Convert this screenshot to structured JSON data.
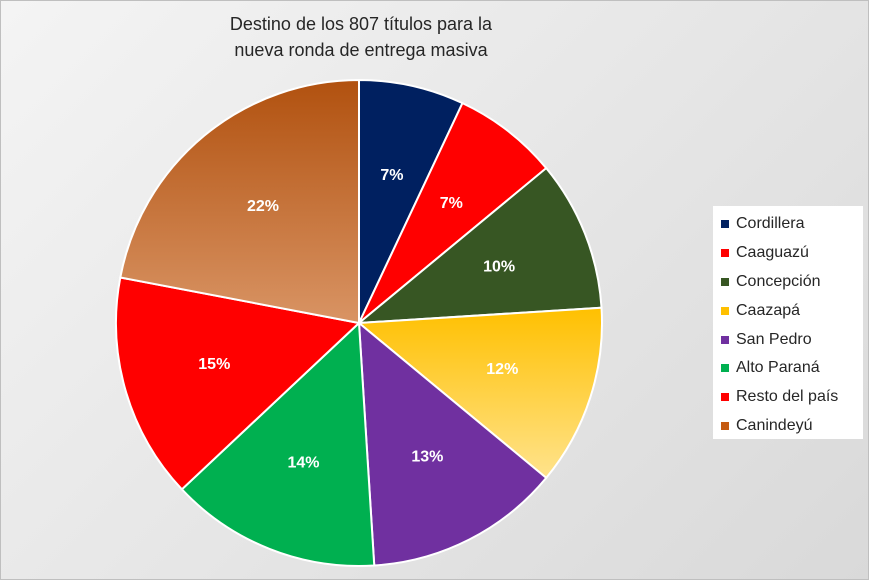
{
  "chart_data": {
    "type": "pie",
    "title": [
      "Destino de los 807 títulos para la",
      "nueva ronda de entrega masiva"
    ],
    "legend_position": "right",
    "slices": [
      {
        "label": "Cordillera",
        "value": 7,
        "display": "7%",
        "color": "#002060"
      },
      {
        "label": "Caaguazú",
        "value": 7,
        "display": "7%",
        "color": "#ff0000"
      },
      {
        "label": "Concepción",
        "value": 10,
        "display": "10%",
        "color": "#375623"
      },
      {
        "label": "Caazapá",
        "value": 12,
        "display": "12%",
        "color": "#ffc000"
      },
      {
        "label": "San Pedro",
        "value": 13,
        "display": "13%",
        "color": "#7030a0"
      },
      {
        "label": "Alto Paraná",
        "value": 14,
        "display": "14%",
        "color": "#00b050"
      },
      {
        "label": "Resto del país",
        "value": 15,
        "display": "15%",
        "color": "#ff0000"
      },
      {
        "label": "Canindeyú",
        "value": 22,
        "display": "22%",
        "color": "#c55a11"
      }
    ]
  }
}
